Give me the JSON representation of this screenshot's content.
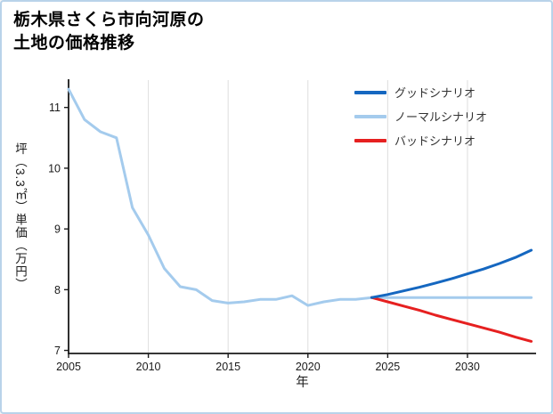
{
  "title": {
    "line1": "栃木県さくら市向河原の",
    "line2": "土地の価格推移"
  },
  "chart_data": {
    "type": "line",
    "title": "栃木県さくら市向河原の土地の価格推移",
    "xlabel": "年",
    "ylabel": "坪（3.3㎡）単価（万円）",
    "xlim": [
      2005,
      2034.3
    ],
    "ylim": [
      6.95,
      11.45
    ],
    "x_ticks": [
      2005,
      2010,
      2015,
      2020,
      2025,
      2030
    ],
    "y_ticks": [
      7,
      8,
      9,
      10,
      11
    ],
    "grid": "vertical-only",
    "legend_position": "top-right",
    "colors": {
      "axis": "#1a1a1a",
      "grid": "#dedede",
      "background": "#ffffff",
      "border": "#b9d3ea"
    },
    "series": [
      {
        "id": "good-scenario",
        "name": "グッドシナリオ",
        "color": "#1567c0",
        "x": [
          2024,
          2025,
          2026,
          2027,
          2028,
          2029,
          2030,
          2031,
          2032,
          2033,
          2034
        ],
        "values": [
          7.87,
          7.92,
          7.98,
          8.04,
          8.11,
          8.18,
          8.26,
          8.34,
          8.43,
          8.53,
          8.65
        ]
      },
      {
        "id": "normal-scenario",
        "name": "ノーマルシナリオ",
        "color": "#a4cbed",
        "x": [
          2005,
          2006,
          2007,
          2008,
          2009,
          2010,
          2011,
          2012,
          2013,
          2014,
          2015,
          2016,
          2017,
          2018,
          2019,
          2020,
          2021,
          2022,
          2023,
          2024,
          2025,
          2026,
          2027,
          2028,
          2029,
          2030,
          2031,
          2032,
          2033,
          2034
        ],
        "values": [
          11.3,
          10.8,
          10.6,
          10.5,
          9.35,
          8.9,
          8.35,
          8.05,
          8.0,
          7.82,
          7.78,
          7.8,
          7.84,
          7.84,
          7.9,
          7.74,
          7.8,
          7.84,
          7.84,
          7.87,
          7.87,
          7.87,
          7.87,
          7.87,
          7.87,
          7.87,
          7.87,
          7.87,
          7.87,
          7.87
        ]
      },
      {
        "id": "bad-scenario",
        "name": "バッドシナリオ",
        "color": "#e62020",
        "x": [
          2024,
          2025,
          2026,
          2027,
          2028,
          2029,
          2030,
          2031,
          2032,
          2033,
          2034
        ],
        "values": [
          7.87,
          7.8,
          7.73,
          7.66,
          7.58,
          7.51,
          7.44,
          7.37,
          7.3,
          7.22,
          7.15
        ]
      }
    ]
  }
}
